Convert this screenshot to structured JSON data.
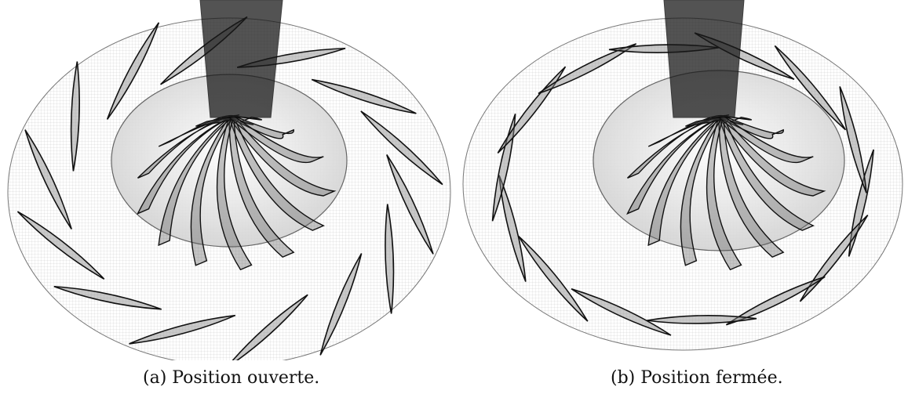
{
  "figures": [
    {
      "id": "a",
      "caption": "(a) Position ouverte.",
      "state": "open",
      "wicket_gate_angles_deg": [
        5,
        28,
        52,
        78,
        105,
        132,
        158,
        185,
        212,
        238,
        262,
        290,
        318,
        342
      ],
      "runner_blade_count": 13
    },
    {
      "id": "b",
      "caption": "(b) Position fermée.",
      "state": "closed",
      "wicket_gate_angles_deg": [
        8,
        33,
        59,
        84,
        110,
        136,
        161,
        187,
        213,
        238,
        264,
        290,
        315,
        341
      ],
      "runner_blade_count": 13
    }
  ],
  "colors": {
    "mesh": "#222222",
    "background": "#ffffff",
    "shaft": "#1a1a1a"
  }
}
